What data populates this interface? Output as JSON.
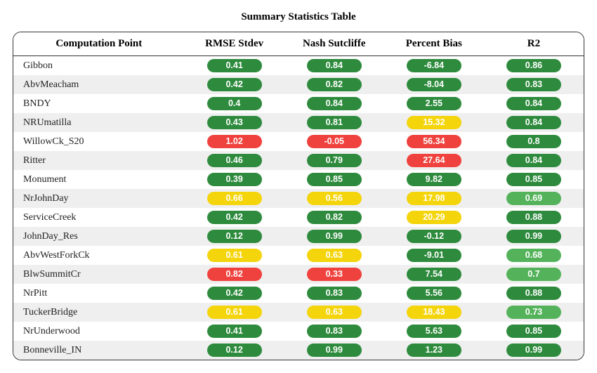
{
  "title": "Summary Statistics Table",
  "colors": {
    "green": "#2e8b3d",
    "green2": "#54b35a",
    "yellow": "#f4d40b",
    "red": "#ef413d",
    "row_odd": "#ffffff",
    "row_even": "#efefef",
    "border": "#333333",
    "text": "#000000"
  },
  "columns": [
    "Computation Point",
    "RMSE Stdev",
    "Nash Sutcliffe",
    "Percent Bias",
    "R2"
  ],
  "rows": [
    {
      "name": "Gibbon",
      "rmse": {
        "v": "0.41",
        "c": "green"
      },
      "nash": {
        "v": "0.84",
        "c": "green"
      },
      "pbias": {
        "v": "-6.84",
        "c": "green"
      },
      "r2": {
        "v": "0.86",
        "c": "green"
      }
    },
    {
      "name": "AbvMeacham",
      "rmse": {
        "v": "0.42",
        "c": "green"
      },
      "nash": {
        "v": "0.82",
        "c": "green"
      },
      "pbias": {
        "v": "-8.04",
        "c": "green"
      },
      "r2": {
        "v": "0.83",
        "c": "green"
      }
    },
    {
      "name": "BNDY",
      "rmse": {
        "v": "0.4",
        "c": "green"
      },
      "nash": {
        "v": "0.84",
        "c": "green"
      },
      "pbias": {
        "v": "2.55",
        "c": "green"
      },
      "r2": {
        "v": "0.84",
        "c": "green"
      }
    },
    {
      "name": "NRUmatilla",
      "rmse": {
        "v": "0.43",
        "c": "green"
      },
      "nash": {
        "v": "0.81",
        "c": "green"
      },
      "pbias": {
        "v": "15.32",
        "c": "yellow"
      },
      "r2": {
        "v": "0.84",
        "c": "green"
      }
    },
    {
      "name": "WillowCk_S20",
      "rmse": {
        "v": "1.02",
        "c": "red"
      },
      "nash": {
        "v": "-0.05",
        "c": "red"
      },
      "pbias": {
        "v": "56.34",
        "c": "red"
      },
      "r2": {
        "v": "0.8",
        "c": "green"
      }
    },
    {
      "name": "Ritter",
      "rmse": {
        "v": "0.46",
        "c": "green"
      },
      "nash": {
        "v": "0.79",
        "c": "green"
      },
      "pbias": {
        "v": "27.64",
        "c": "red"
      },
      "r2": {
        "v": "0.84",
        "c": "green"
      }
    },
    {
      "name": "Monument",
      "rmse": {
        "v": "0.39",
        "c": "green"
      },
      "nash": {
        "v": "0.85",
        "c": "green"
      },
      "pbias": {
        "v": "9.82",
        "c": "green"
      },
      "r2": {
        "v": "0.85",
        "c": "green"
      }
    },
    {
      "name": "NrJohnDay",
      "rmse": {
        "v": "0.66",
        "c": "yellow"
      },
      "nash": {
        "v": "0.56",
        "c": "yellow"
      },
      "pbias": {
        "v": "17.98",
        "c": "yellow"
      },
      "r2": {
        "v": "0.69",
        "c": "green2"
      }
    },
    {
      "name": "ServiceCreek",
      "rmse": {
        "v": "0.42",
        "c": "green"
      },
      "nash": {
        "v": "0.82",
        "c": "green"
      },
      "pbias": {
        "v": "20.29",
        "c": "yellow"
      },
      "r2": {
        "v": "0.88",
        "c": "green"
      }
    },
    {
      "name": "JohnDay_Res",
      "rmse": {
        "v": "0.12",
        "c": "green"
      },
      "nash": {
        "v": "0.99",
        "c": "green"
      },
      "pbias": {
        "v": "-0.12",
        "c": "green"
      },
      "r2": {
        "v": "0.99",
        "c": "green"
      }
    },
    {
      "name": "AbvWestForkCk",
      "rmse": {
        "v": "0.61",
        "c": "yellow"
      },
      "nash": {
        "v": "0.63",
        "c": "yellow"
      },
      "pbias": {
        "v": "-9.01",
        "c": "green"
      },
      "r2": {
        "v": "0.68",
        "c": "green2"
      }
    },
    {
      "name": "BlwSummitCr",
      "rmse": {
        "v": "0.82",
        "c": "red"
      },
      "nash": {
        "v": "0.33",
        "c": "red"
      },
      "pbias": {
        "v": "7.54",
        "c": "green"
      },
      "r2": {
        "v": "0.7",
        "c": "green2"
      }
    },
    {
      "name": "NrPitt",
      "rmse": {
        "v": "0.42",
        "c": "green"
      },
      "nash": {
        "v": "0.83",
        "c": "green"
      },
      "pbias": {
        "v": "5.56",
        "c": "green"
      },
      "r2": {
        "v": "0.88",
        "c": "green"
      }
    },
    {
      "name": "TuckerBridge",
      "rmse": {
        "v": "0.61",
        "c": "yellow"
      },
      "nash": {
        "v": "0.63",
        "c": "yellow"
      },
      "pbias": {
        "v": "18.43",
        "c": "yellow"
      },
      "r2": {
        "v": "0.73",
        "c": "green2"
      }
    },
    {
      "name": "NrUnderwood",
      "rmse": {
        "v": "0.41",
        "c": "green"
      },
      "nash": {
        "v": "0.83",
        "c": "green"
      },
      "pbias": {
        "v": "5.63",
        "c": "green"
      },
      "r2": {
        "v": "0.85",
        "c": "green"
      }
    },
    {
      "name": "Bonneville_IN",
      "rmse": {
        "v": "0.12",
        "c": "green"
      },
      "nash": {
        "v": "0.99",
        "c": "green"
      },
      "pbias": {
        "v": "1.23",
        "c": "green"
      },
      "r2": {
        "v": "0.99",
        "c": "green"
      }
    }
  ]
}
